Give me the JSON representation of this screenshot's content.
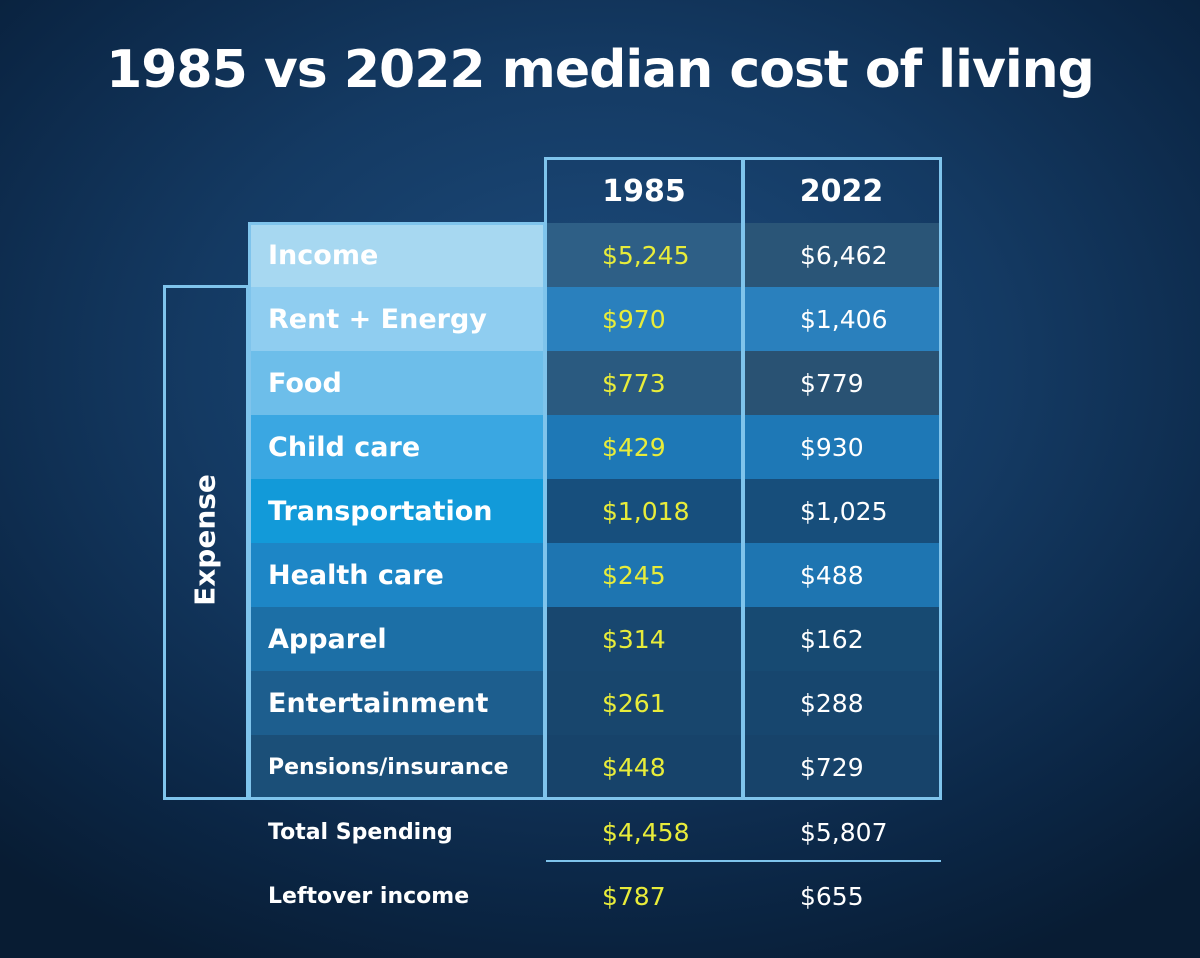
{
  "title": "1985 vs 2022 median cost of living",
  "chart_data": {
    "type": "table",
    "columns": [
      "1985",
      "2022"
    ],
    "group_label": "Expense",
    "rows": [
      {
        "label": "Income",
        "v1985": "$5,245",
        "v2022": "$6,462"
      },
      {
        "label": "Rent + Energy",
        "v1985": "$970",
        "v2022": "$1,406"
      },
      {
        "label": "Food",
        "v1985": "$773",
        "v2022": "$779"
      },
      {
        "label": "Child care",
        "v1985": "$429",
        "v2022": "$930"
      },
      {
        "label": "Transportation",
        "v1985": "$1,018",
        "v2022": "$1,025"
      },
      {
        "label": "Health care",
        "v1985": "$245",
        "v2022": "$488"
      },
      {
        "label": "Apparel",
        "v1985": "$314",
        "v2022": "$162"
      },
      {
        "label": "Entertainment",
        "v1985": "$261",
        "v2022": "$288"
      },
      {
        "label": "Pensions/insurance",
        "v1985": "$448",
        "v2022": "$729"
      }
    ],
    "footer": [
      {
        "label": "Total Spending",
        "v1985": "$4,458",
        "v2022": "$5,807"
      },
      {
        "label": "Leftover income",
        "v1985": "$787",
        "v2022": "$655"
      }
    ]
  },
  "colors": {
    "accent_border": "#7fc4ec",
    "value_1985": "#e8ec3a",
    "value_2022": "#ffffff"
  }
}
